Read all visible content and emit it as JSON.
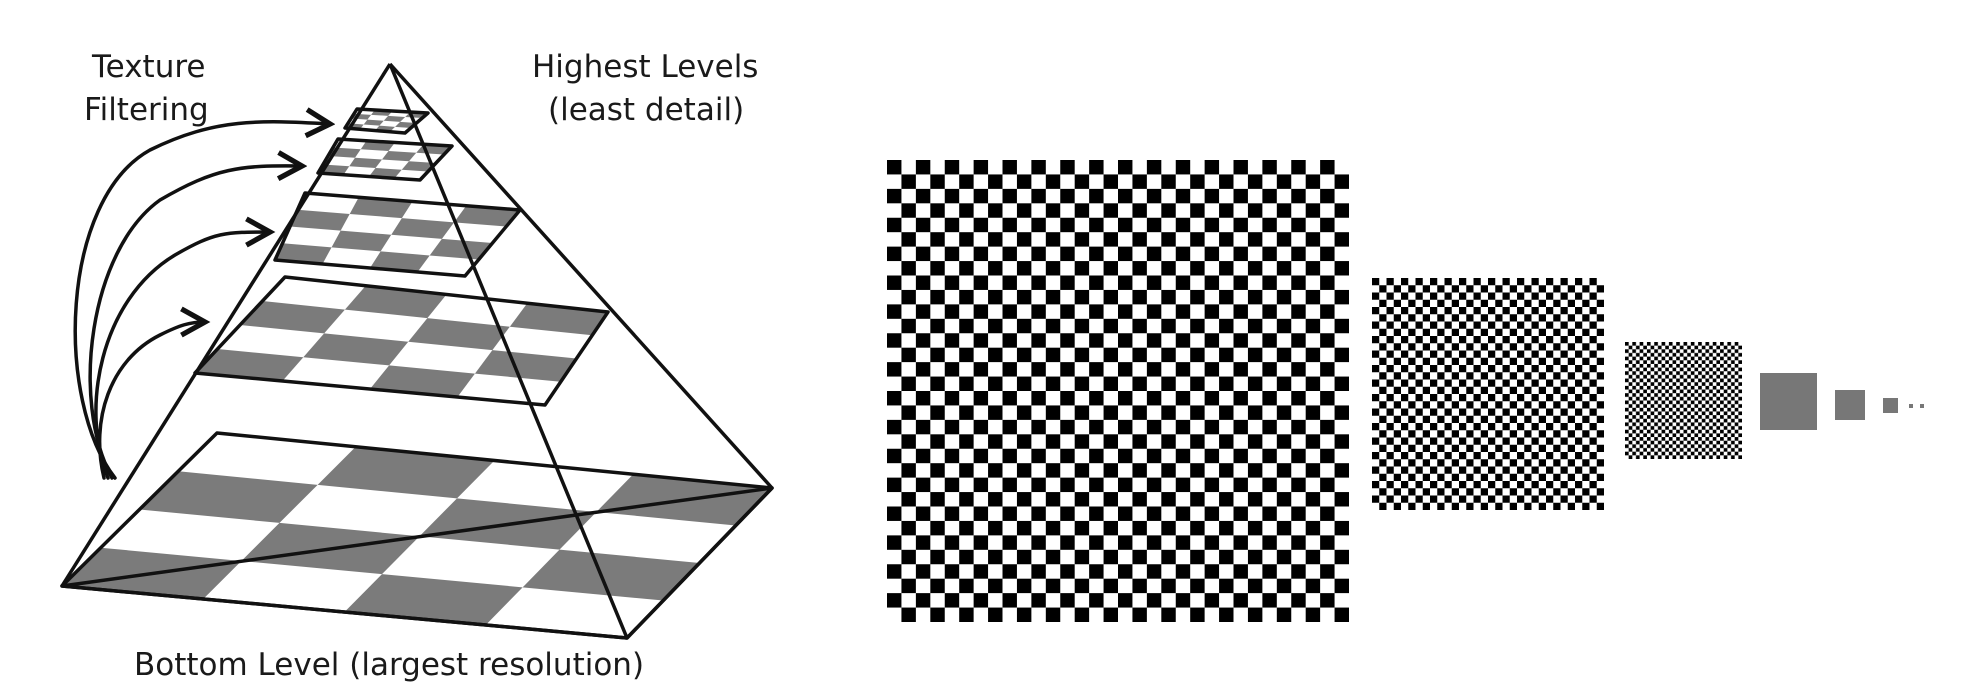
{
  "labels": {
    "texture_filtering_line1": "Texture",
    "texture_filtering_line2": "Filtering",
    "highest_levels_line1": "Highest Levels",
    "highest_levels_line2": "(least detail)",
    "bottom_level": "Bottom Level (largest resolution)"
  },
  "pyramid": {
    "levels": [
      {
        "name": "level-0",
        "grid": 4
      },
      {
        "name": "level-1",
        "grid": 4
      },
      {
        "name": "level-2",
        "grid": 4
      },
      {
        "name": "level-3",
        "grid": 4
      },
      {
        "name": "level-4",
        "grid": 4
      }
    ],
    "arrow_count": 4
  },
  "mipmaps": {
    "checker_counts": [
      32,
      32,
      32
    ],
    "solid_levels": 3,
    "trailing_dots": 2
  },
  "colors": {
    "ink": "#111111",
    "dark_tile": "#7b7b7b",
    "mip_gray": "#777777",
    "checker_dark": "#000000",
    "checker_light": "#ffffff"
  }
}
